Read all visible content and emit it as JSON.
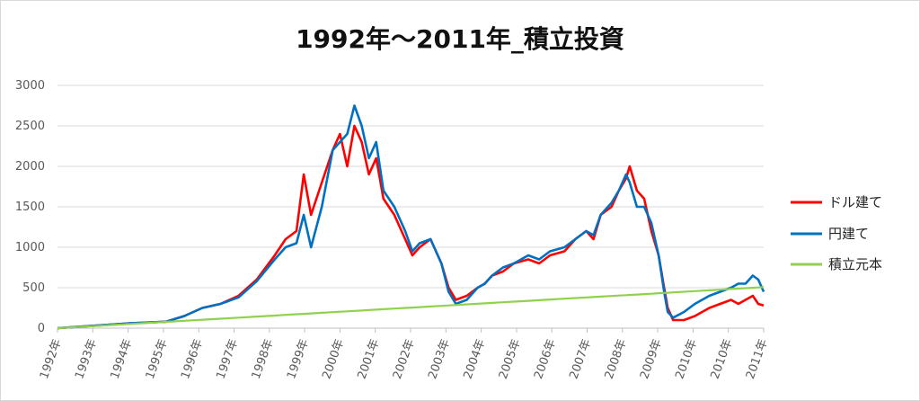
{
  "chart_data": {
    "type": "line",
    "title": "1992年〜2011年_積立投資",
    "xlabel": "",
    "ylabel": "",
    "ylim": [
      0,
      3000
    ],
    "y_ticks": [
      0,
      500,
      1000,
      1500,
      2000,
      2500,
      3000
    ],
    "x_ticks": [
      "1992年",
      "1993年",
      "1994年",
      "1995年",
      "1996年",
      "1997年",
      "1998年",
      "1999年",
      "2000年",
      "2001年",
      "2002年",
      "2003年",
      "2004年",
      "2005年",
      "2006年",
      "2007年",
      "2008年",
      "2009年",
      "2010年",
      "2010年",
      "2011年"
    ],
    "grid": true,
    "legend_position": "right",
    "x": [
      1992.0,
      1993.0,
      1994.0,
      1994.5,
      1995.0,
      1995.5,
      1996.0,
      1996.5,
      1997.0,
      1997.5,
      1998.0,
      1998.3,
      1998.6,
      1998.8,
      1999.0,
      1999.3,
      1999.6,
      1999.8,
      2000.0,
      2000.2,
      2000.4,
      2000.6,
      2000.8,
      2001.0,
      2001.3,
      2001.6,
      2001.8,
      2002.0,
      2002.3,
      2002.6,
      2002.8,
      2003.0,
      2003.3,
      2003.6,
      2003.8,
      2004.0,
      2004.3,
      2004.6,
      2005.0,
      2005.3,
      2005.6,
      2006.0,
      2006.3,
      2006.6,
      2006.8,
      2007.0,
      2007.3,
      2007.5,
      2007.7,
      2007.8,
      2008.0,
      2008.2,
      2008.4,
      2008.6,
      2008.75,
      2008.85,
      2009.0,
      2009.3,
      2009.6,
      2010.0,
      2010.3,
      2010.6,
      2010.8,
      2011.0,
      2011.2,
      2011.35,
      2011.5
    ],
    "series": [
      {
        "name": "ドル建て",
        "color": "#ff0000",
        "values": [
          0,
          30,
          60,
          70,
          80,
          150,
          250,
          300,
          400,
          600,
          900,
          1100,
          1200,
          1900,
          1400,
          1800,
          2200,
          2400,
          2000,
          2500,
          2300,
          1900,
          2100,
          1600,
          1400,
          1100,
          900,
          1000,
          1100,
          800,
          500,
          350,
          400,
          500,
          550,
          650,
          700,
          800,
          850,
          800,
          900,
          950,
          1100,
          1200,
          1100,
          1400,
          1500,
          1700,
          1850,
          2000,
          1700,
          1600,
          1200,
          900,
          500,
          250,
          100,
          100,
          150,
          250,
          300,
          350,
          300,
          350,
          400,
          300,
          280
        ]
      },
      {
        "name": "円建て",
        "color": "#0070c0",
        "values": [
          0,
          30,
          60,
          70,
          80,
          150,
          250,
          300,
          380,
          580,
          850,
          1000,
          1050,
          1400,
          1000,
          1500,
          2200,
          2300,
          2400,
          2750,
          2500,
          2100,
          2300,
          1700,
          1500,
          1200,
          950,
          1050,
          1100,
          800,
          450,
          300,
          350,
          500,
          550,
          650,
          750,
          800,
          900,
          850,
          950,
          1000,
          1100,
          1200,
          1150,
          1400,
          1550,
          1700,
          1900,
          1800,
          1500,
          1500,
          1300,
          900,
          450,
          200,
          130,
          200,
          300,
          400,
          450,
          500,
          550,
          550,
          650,
          600,
          450
        ]
      },
      {
        "name": "積立元本",
        "color": "#92d050",
        "values": [
          0,
          26,
          52,
          65,
          78,
          91,
          104,
          117,
          130,
          143,
          156,
          164,
          172,
          177,
          182,
          190,
          198,
          203,
          208,
          213,
          218,
          224,
          229,
          234,
          242,
          250,
          255,
          260,
          268,
          276,
          281,
          286,
          294,
          302,
          307,
          312,
          320,
          328,
          338,
          346,
          354,
          364,
          372,
          380,
          385,
          390,
          398,
          403,
          408,
          411,
          416,
          421,
          426,
          432,
          436,
          438,
          442,
          450,
          458,
          468,
          476,
          484,
          489,
          494,
          499,
          503,
          507
        ]
      }
    ]
  }
}
